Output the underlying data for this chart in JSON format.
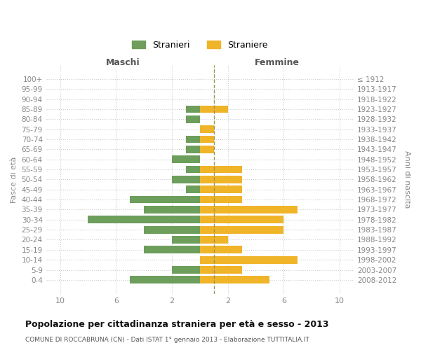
{
  "age_groups": [
    "0-4",
    "5-9",
    "10-14",
    "15-19",
    "20-24",
    "25-29",
    "30-34",
    "35-39",
    "40-44",
    "45-49",
    "50-54",
    "55-59",
    "60-64",
    "65-69",
    "70-74",
    "75-79",
    "80-84",
    "85-89",
    "90-94",
    "95-99",
    "100+"
  ],
  "birth_years": [
    "2008-2012",
    "2003-2007",
    "1998-2002",
    "1993-1997",
    "1988-1992",
    "1983-1987",
    "1978-1982",
    "1973-1977",
    "1968-1972",
    "1963-1967",
    "1958-1962",
    "1953-1957",
    "1948-1952",
    "1943-1947",
    "1938-1942",
    "1933-1937",
    "1928-1932",
    "1923-1927",
    "1918-1922",
    "1913-1917",
    "≤ 1912"
  ],
  "maschi": [
    5,
    2,
    0,
    4,
    2,
    4,
    8,
    4,
    5,
    1,
    2,
    1,
    2,
    1,
    1,
    0,
    1,
    1,
    0,
    0,
    0
  ],
  "femmine": [
    5,
    3,
    7,
    3,
    2,
    6,
    6,
    7,
    3,
    3,
    3,
    3,
    0,
    1,
    1,
    1,
    0,
    2,
    0,
    0,
    0
  ],
  "male_color": "#6d9e5b",
  "female_color": "#f0b429",
  "grid_color": "#cccccc",
  "dashed_line_color": "#999955",
  "title": "Popolazione per cittadinanza straniera per età e sesso - 2013",
  "subtitle": "COMUNE DI ROCCABRUNA (CN) - Dati ISTAT 1° gennaio 2013 - Elaborazione TUTTITALIA.IT",
  "xlabel_left": "Maschi",
  "xlabel_right": "Femmine",
  "ylabel_left": "Fasce di età",
  "ylabel_right": "Anni di nascita",
  "legend_maschi": "Stranieri",
  "legend_femmine": "Straniere",
  "xlim": 11,
  "bar_height": 0.75
}
